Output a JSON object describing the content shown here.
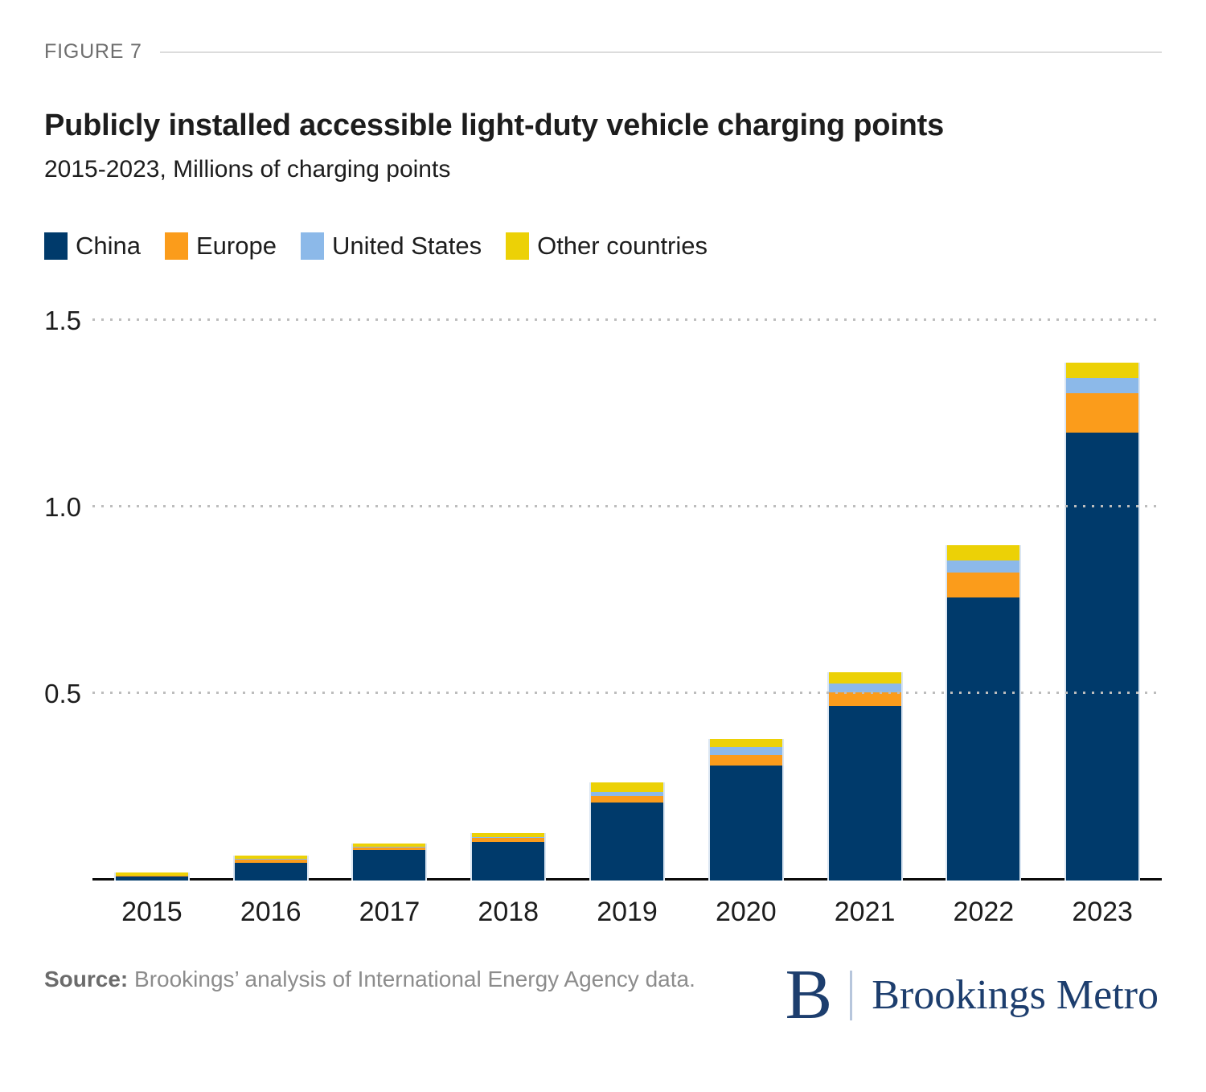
{
  "figure_label": "FIGURE 7",
  "title": "Publicly installed accessible light-duty vehicle charging points",
  "subtitle": "2015-2023, Millions of charging points",
  "chart_data": {
    "type": "bar",
    "stacked": true,
    "title": "Publicly installed accessible light-duty vehicle charging points",
    "subtitle": "2015-2023, Millions of charging points",
    "categories": [
      "2015",
      "2016",
      "2017",
      "2018",
      "2019",
      "2020",
      "2021",
      "2022",
      "2023"
    ],
    "series": [
      {
        "name": "China",
        "color": "#003A6B",
        "values": [
          0.011,
          0.048,
          0.082,
          0.104,
          0.21,
          0.308,
          0.468,
          0.759,
          1.2
        ]
      },
      {
        "name": "Europe",
        "color": "#FB9C1B",
        "values": [
          0.002,
          0.008,
          0.006,
          0.011,
          0.017,
          0.029,
          0.036,
          0.066,
          0.107
        ]
      },
      {
        "name": "United States",
        "color": "#8CB9E9",
        "values": [
          0.001,
          0.002,
          0.002,
          0.002,
          0.011,
          0.02,
          0.023,
          0.033,
          0.04
        ]
      },
      {
        "name": "Other countries",
        "color": "#ECD106",
        "values": [
          0.008,
          0.01,
          0.01,
          0.011,
          0.025,
          0.023,
          0.031,
          0.04,
          0.042
        ]
      }
    ],
    "xlabel": "",
    "ylabel": "Millions of charging points",
    "yticks": [
      0.5,
      1.0,
      1.5
    ],
    "ytick_labels": [
      "0.5",
      "1.0",
      "1.5"
    ],
    "ylim": [
      0,
      1.5625
    ],
    "grid": "dotted-horizontal",
    "legend_position": "top-left"
  },
  "source": {
    "prefix": "Source:",
    "rest": "Brookings’ analysis of International Energy Agency data."
  },
  "logo": {
    "monogram": "B",
    "name": "Brookings Metro"
  },
  "colors": {
    "china": "#003A6B",
    "europe": "#FB9C1B",
    "united_states": "#8CB9E9",
    "other_countries": "#ECD106",
    "axis_line": "#0A0A0A",
    "gridline": "#BDBDBD",
    "figure_label": "#6E6E6E",
    "header_rule": "#DCDCDC",
    "text_dark": "#1D1D1D",
    "source_text": "#8C8C8C",
    "logo_navy": "#1D3E6E"
  }
}
